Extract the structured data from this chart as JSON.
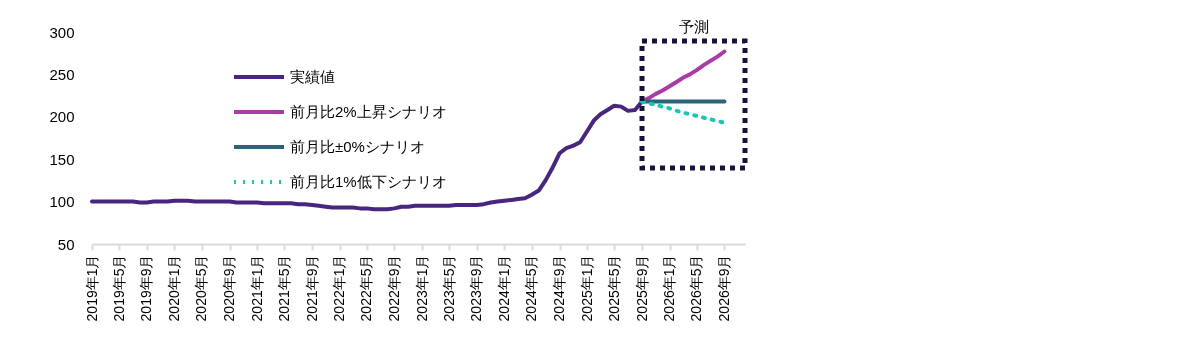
{
  "chart_data": {
    "type": "line",
    "xlim": [
      "2019-01",
      "2026-12"
    ],
    "ylim": [
      50,
      300
    ],
    "yticks": [
      50,
      100,
      150,
      200,
      250,
      300
    ],
    "xticks": [
      {
        "value": "2019-01",
        "label": "2019年1月"
      },
      {
        "value": "2019-05",
        "label": "2019年5月"
      },
      {
        "value": "2019-09",
        "label": "2019年9月"
      },
      {
        "value": "2020-01",
        "label": "2020年1月"
      },
      {
        "value": "2020-05",
        "label": "2020年5月"
      },
      {
        "value": "2020-09",
        "label": "2020年9月"
      },
      {
        "value": "2021-01",
        "label": "2021年1月"
      },
      {
        "value": "2021-05",
        "label": "2021年5月"
      },
      {
        "value": "2021-09",
        "label": "2021年9月"
      },
      {
        "value": "2022-01",
        "label": "2022年1月"
      },
      {
        "value": "2022-05",
        "label": "2022年5月"
      },
      {
        "value": "2022-09",
        "label": "2022年9月"
      },
      {
        "value": "2023-01",
        "label": "2023年1月"
      },
      {
        "value": "2023-05",
        "label": "2023年5月"
      },
      {
        "value": "2023-09",
        "label": "2023年9月"
      },
      {
        "value": "2024-01",
        "label": "2024年1月"
      },
      {
        "value": "2024-05",
        "label": "2024年5月"
      },
      {
        "value": "2024-09",
        "label": "2024年9月"
      },
      {
        "value": "2025-01",
        "label": "2025年1月"
      },
      {
        "value": "2025-05",
        "label": "2025年5月"
      },
      {
        "value": "2025-09",
        "label": "2025年9月"
      },
      {
        "value": "2026-01",
        "label": "2026年1月"
      },
      {
        "value": "2026-05",
        "label": "2026年5月"
      },
      {
        "value": "2026-09",
        "label": "2026年9月"
      }
    ],
    "grid": false,
    "legend": "top left",
    "marker": "none",
    "annotations": [
      "予測"
    ],
    "series": [
      {
        "name": "実績値",
        "color": "#48267f",
        "line_style": "solid",
        "x": [
          "2019-01",
          "2019-02",
          "2019-03",
          "2019-04",
          "2019-05",
          "2019-06",
          "2019-07",
          "2019-08",
          "2019-09",
          "2019-10",
          "2019-11",
          "2019-12",
          "2020-01",
          "2020-02",
          "2020-03",
          "2020-04",
          "2020-05",
          "2020-06",
          "2020-07",
          "2020-08",
          "2020-09",
          "2020-10",
          "2020-11",
          "2020-12",
          "2021-01",
          "2021-02",
          "2021-03",
          "2021-04",
          "2021-05",
          "2021-06",
          "2021-07",
          "2021-08",
          "2021-09",
          "2021-10",
          "2021-11",
          "2021-12",
          "2022-01",
          "2022-02",
          "2022-03",
          "2022-04",
          "2022-05",
          "2022-06",
          "2022-07",
          "2022-08",
          "2022-09",
          "2022-10",
          "2022-11",
          "2022-12",
          "2023-01",
          "2023-02",
          "2023-03",
          "2023-04",
          "2023-05",
          "2023-06",
          "2023-07",
          "2023-08",
          "2023-09",
          "2023-10",
          "2023-11",
          "2023-12",
          "2024-01",
          "2024-02",
          "2024-03",
          "2024-04",
          "2024-05",
          "2024-06",
          "2024-07",
          "2024-08",
          "2024-09",
          "2024-10",
          "2024-11",
          "2024-12",
          "2025-01",
          "2025-02",
          "2025-03",
          "2025-04",
          "2025-05",
          "2025-06",
          "2025-07",
          "2025-08",
          "2025-09"
        ],
        "values": [
          100,
          100,
          100,
          100,
          100,
          100,
          100,
          99,
          99,
          100,
          100,
          100,
          101,
          101,
          101,
          100,
          100,
          100,
          100,
          100,
          100,
          99,
          99,
          99,
          99,
          98,
          98,
          98,
          98,
          98,
          97,
          97,
          96,
          95,
          94,
          93,
          93,
          93,
          93,
          92,
          92,
          91,
          91,
          91,
          92,
          94,
          94,
          95,
          95,
          95,
          95,
          95,
          95,
          96,
          96,
          96,
          96,
          97,
          99,
          100,
          101,
          102,
          103,
          104,
          108,
          113,
          125,
          140,
          157,
          163,
          166,
          170,
          183,
          196,
          203,
          208,
          213,
          212,
          207,
          208,
          218
        ]
      },
      {
        "name": "前月比2%上昇シナリオ",
        "color": "#a93aa8",
        "line_style": "solid",
        "x": [
          "2025-09",
          "2025-10",
          "2025-11",
          "2025-12",
          "2026-01",
          "2026-02",
          "2026-03",
          "2026-04",
          "2026-05",
          "2026-06",
          "2026-07",
          "2026-08",
          "2026-09"
        ],
        "values": [
          218,
          222,
          227,
          231,
          236,
          241,
          246,
          250,
          255,
          261,
          266,
          271,
          277
        ]
      },
      {
        "name": "前月比±0%シナリオ",
        "color": "#2b6478",
        "line_style": "solid",
        "x": [
          "2025-09",
          "2025-10",
          "2025-11",
          "2025-12",
          "2026-01",
          "2026-02",
          "2026-03",
          "2026-04",
          "2026-05",
          "2026-06",
          "2026-07",
          "2026-08",
          "2026-09"
        ],
        "values": [
          218,
          218,
          218,
          218,
          218,
          218,
          218,
          218,
          218,
          218,
          218,
          218,
          218
        ]
      },
      {
        "name": "前月比1%低下シナリオ",
        "color": "#17c7b2",
        "line_style": "dotted",
        "x": [
          "2025-09",
          "2025-10",
          "2025-11",
          "2025-12",
          "2026-01",
          "2026-02",
          "2026-03",
          "2026-04",
          "2026-05",
          "2026-06",
          "2026-07",
          "2026-08",
          "2026-09"
        ],
        "values": [
          218,
          216,
          214,
          212,
          210,
          207,
          205,
          203,
          201,
          199,
          197,
          195,
          193
        ]
      }
    ]
  }
}
